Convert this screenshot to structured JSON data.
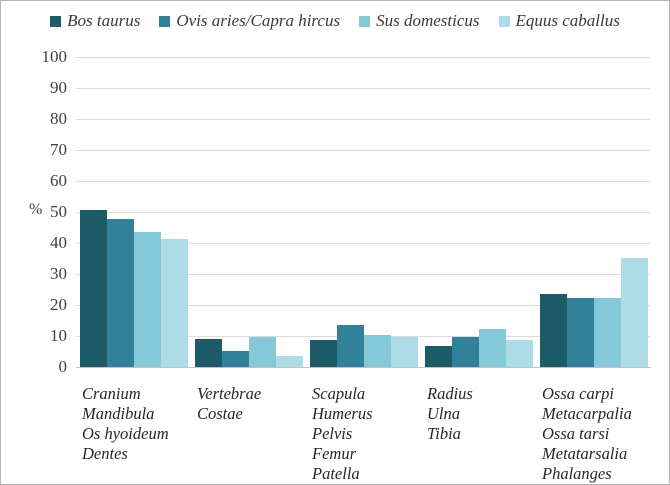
{
  "chart_data": {
    "type": "bar",
    "title": "",
    "xlabel": "",
    "ylabel": "%",
    "ylim": [
      0,
      100
    ],
    "yticks": [
      0,
      10,
      20,
      30,
      40,
      50,
      60,
      70,
      80,
      90,
      100
    ],
    "grid": "horizontal",
    "legend_position": "top",
    "categories": [
      [
        "Cranium",
        "Mandibula",
        "Os hyoideum",
        "Dentes"
      ],
      [
        "Vertebrae",
        "Costae"
      ],
      [
        "Scapula",
        "Humerus",
        "Pelvis",
        "Femur",
        "Patella"
      ],
      [
        "Radius",
        "Ulna",
        "Tibia"
      ],
      [
        "Ossa carpi",
        "Metacarpalia",
        "Ossa tarsi",
        "Metatarsalia",
        "Phalanges"
      ]
    ],
    "series": [
      {
        "name": "Bos taurus",
        "color": "#1e5a68",
        "values": [
          51,
          9.5,
          9,
          7,
          24
        ]
      },
      {
        "name": "Ovis aries/Capra hircus",
        "color": "#32819b",
        "values": [
          48,
          5.5,
          14,
          10,
          22.5
        ]
      },
      {
        "name": "Sus domesticus",
        "color": "#85c8d8",
        "values": [
          44,
          10,
          10.5,
          12.5,
          22.5
        ]
      },
      {
        "name": "Equus caballus",
        "color": "#aedce6",
        "values": [
          41.5,
          4,
          10,
          9,
          35.5
        ]
      }
    ],
    "colors": {
      "gridline": "#dcdcdc",
      "axis_line": "#c3c3c3",
      "text": "#3a3a3a"
    }
  }
}
